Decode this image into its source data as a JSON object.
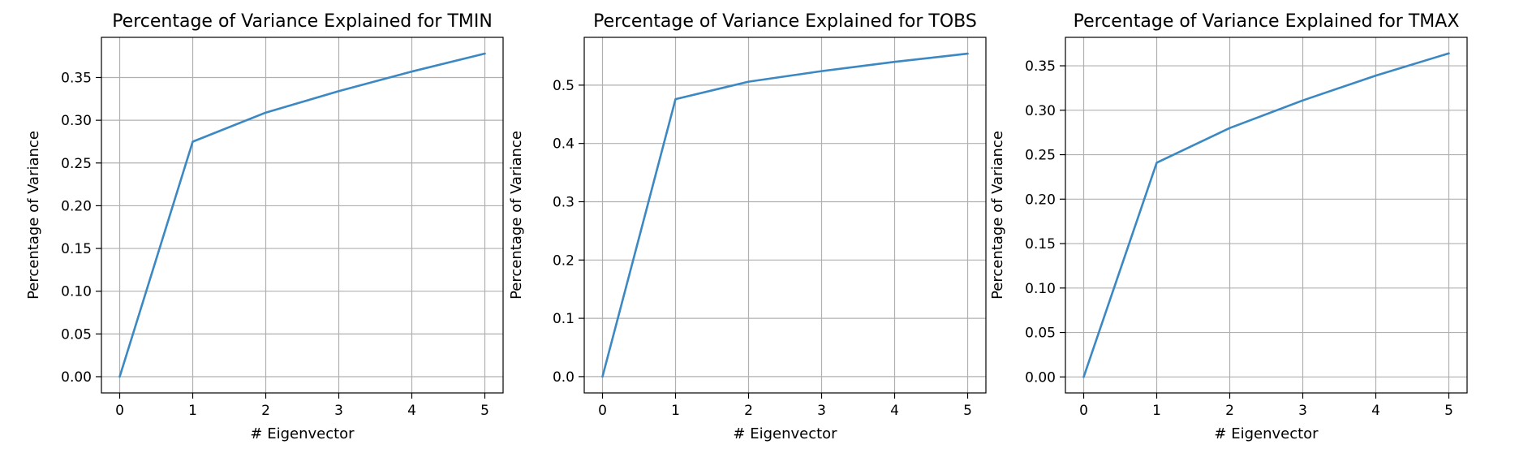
{
  "colors": {
    "line": "#3b88c3",
    "grid": "#b0b0b0"
  },
  "chart_data": [
    {
      "type": "line",
      "title": "Percentage of Variance Explained for TMIN",
      "xlabel": "# Eigenvector",
      "ylabel": "Percentage of Variance",
      "x": [
        0,
        1,
        2,
        3,
        4,
        5
      ],
      "y": [
        0.0,
        0.275,
        0.309,
        0.334,
        0.357,
        0.378
      ],
      "xlim": [
        -0.25,
        5.25
      ],
      "ylim": [
        -0.019,
        0.397
      ],
      "xticks": [
        0,
        1,
        2,
        3,
        4,
        5
      ],
      "yticks": [
        0.0,
        0.05,
        0.1,
        0.15,
        0.2,
        0.25,
        0.3,
        0.35
      ],
      "ytick_labels": [
        "0.00",
        "0.05",
        "0.10",
        "0.15",
        "0.20",
        "0.25",
        "0.30",
        "0.35"
      ],
      "grid": true
    },
    {
      "type": "line",
      "title": "Percentage of Variance Explained for TOBS",
      "xlabel": "# Eigenvector",
      "ylabel": "Percentage of Variance",
      "x": [
        0,
        1,
        2,
        3,
        4,
        5
      ],
      "y": [
        0.0,
        0.476,
        0.506,
        0.524,
        0.54,
        0.554
      ],
      "xlim": [
        -0.25,
        5.25
      ],
      "ylim": [
        -0.028,
        0.582
      ],
      "xticks": [
        0,
        1,
        2,
        3,
        4,
        5
      ],
      "yticks": [
        0.0,
        0.1,
        0.2,
        0.3,
        0.4,
        0.5
      ],
      "ytick_labels": [
        "0.0",
        "0.1",
        "0.2",
        "0.3",
        "0.4",
        "0.5"
      ],
      "grid": true
    },
    {
      "type": "line",
      "title": "Percentage of Variance Explained for TMAX",
      "xlabel": "# Eigenvector",
      "ylabel": "Percentage of Variance",
      "x": [
        0,
        1,
        2,
        3,
        4,
        5
      ],
      "y": [
        0.0,
        0.241,
        0.28,
        0.311,
        0.339,
        0.364
      ],
      "xlim": [
        -0.25,
        5.25
      ],
      "ylim": [
        -0.018,
        0.382
      ],
      "xticks": [
        0,
        1,
        2,
        3,
        4,
        5
      ],
      "yticks": [
        0.0,
        0.05,
        0.1,
        0.15,
        0.2,
        0.25,
        0.3,
        0.35
      ],
      "ytick_labels": [
        "0.00",
        "0.05",
        "0.10",
        "0.15",
        "0.20",
        "0.25",
        "0.30",
        "0.35"
      ],
      "grid": true
    }
  ]
}
